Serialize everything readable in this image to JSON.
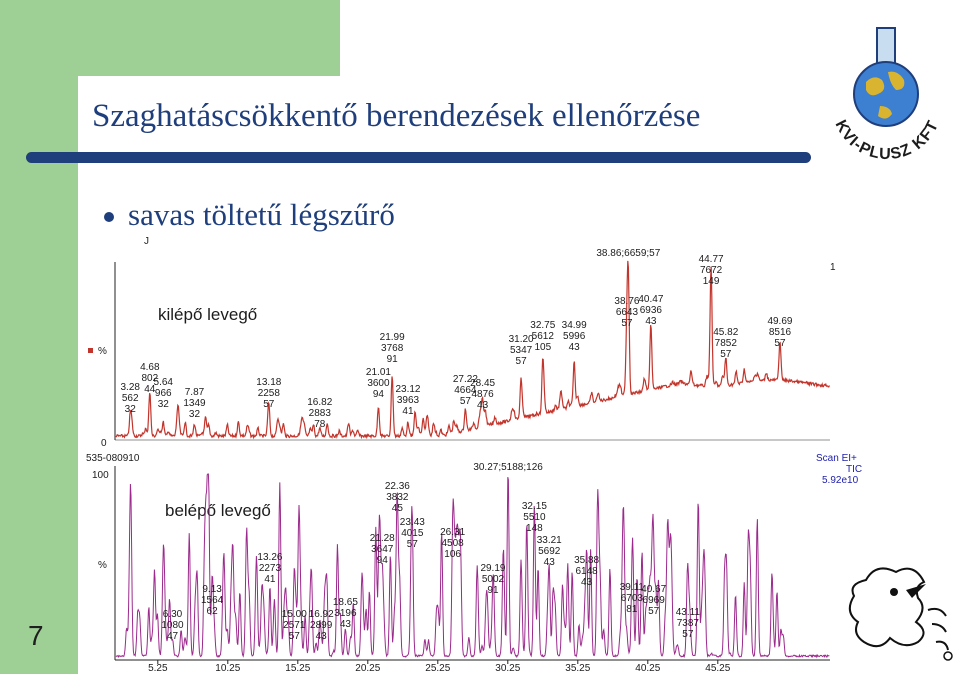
{
  "slide": {
    "title": "Szaghatáscsökkentő berendezések ellenőrzése",
    "bullet": "savas töltetű légszűrő",
    "slide_number": "7",
    "logo_text": "KVI-PLUSZ KFT",
    "colors": {
      "title": "#1f3e7c",
      "green": "#9ecf94",
      "red_trace": "#c2352c",
      "purple_trace": "#9b2a8c"
    }
  },
  "chart_data": [
    {
      "type": "line",
      "label": "kilépő levegő",
      "y_axis": {
        "top_label": "%",
        "bottom_label": "0",
        "marker": "%"
      },
      "right_tag": "1",
      "peaks": [
        {
          "rt": 3.28,
          "lines": [
            "3.28",
            "562",
            "32"
          ]
        },
        {
          "rt": 4.68,
          "lines": [
            "4.68",
            "802",
            "44"
          ]
        },
        {
          "rt": 5.64,
          "lines": [
            "5.64",
            "966",
            "32"
          ]
        },
        {
          "rt": 7.87,
          "lines": [
            "7.87",
            "1349",
            "32"
          ]
        },
        {
          "rt": 13.18,
          "lines": [
            "13.18",
            "2258",
            "57"
          ]
        },
        {
          "rt": 16.82,
          "lines": [
            "16.82",
            "2883",
            "78"
          ]
        },
        {
          "rt": 21.01,
          "lines": [
            "21.01",
            "3600",
            "94"
          ]
        },
        {
          "rt": 21.99,
          "lines": [
            "21.99",
            "3768",
            "91"
          ]
        },
        {
          "rt": 23.12,
          "lines": [
            "23.12",
            "3963",
            "41"
          ]
        },
        {
          "rt": 27.22,
          "lines": [
            "27.22",
            "4664",
            "57"
          ]
        },
        {
          "rt": 28.45,
          "lines": [
            "28.45",
            "4876",
            "43"
          ]
        },
        {
          "rt": 31.2,
          "lines": [
            "31.20",
            "5347",
            "57"
          ]
        },
        {
          "rt": 32.75,
          "lines": [
            "32.75",
            "5612",
            "105"
          ]
        },
        {
          "rt": 34.99,
          "lines": [
            "34.99",
            "5996",
            "43"
          ]
        },
        {
          "rt": 38.76,
          "lines": [
            "38.76",
            "6643",
            "57"
          ]
        },
        {
          "rt": 38.86,
          "lines": [
            "38.86;6659;57"
          ]
        },
        {
          "rt": 40.47,
          "lines": [
            "40.47",
            "6936",
            "43"
          ]
        },
        {
          "rt": 44.77,
          "lines": [
            "44.77",
            "7672",
            "149"
          ]
        },
        {
          "rt": 45.82,
          "lines": [
            "45.82",
            "7852",
            "57"
          ]
        },
        {
          "rt": 49.69,
          "lines": [
            "49.69",
            "8516",
            "57"
          ]
        }
      ]
    },
    {
      "type": "line",
      "label": "belépő levegő",
      "sample_id": "535-080910",
      "y_axis": {
        "top_label": "100",
        "mid_label": "%"
      },
      "scan_info": [
        "Scan EI+",
        "TIC",
        "5.92e10"
      ],
      "x_ticks": [
        "5.25",
        "10.25",
        "15.25",
        "20.25",
        "25.25",
        "30.25",
        "35.25",
        "40.25",
        "45.25"
      ],
      "peaks": [
        {
          "rt": 6.3,
          "lines": [
            "6.30",
            "1080",
            "47"
          ]
        },
        {
          "rt": 9.13,
          "lines": [
            "9.13",
            "1564",
            "62"
          ]
        },
        {
          "rt": 13.26,
          "lines": [
            "13.26",
            "2273",
            "41"
          ]
        },
        {
          "rt": 15.0,
          "lines": [
            "15.00",
            "2571",
            "57"
          ]
        },
        {
          "rt": 16.92,
          "lines": [
            "16.92",
            "2899",
            "43"
          ]
        },
        {
          "rt": 18.65,
          "lines": [
            "18.65",
            "3196",
            "43"
          ]
        },
        {
          "rt": 21.28,
          "lines": [
            "21.28",
            "3647",
            "94"
          ]
        },
        {
          "rt": 22.36,
          "lines": [
            "22.36",
            "3832",
            "45"
          ]
        },
        {
          "rt": 23.43,
          "lines": [
            "23.43",
            "4015",
            "57"
          ]
        },
        {
          "rt": 26.31,
          "lines": [
            "26.31",
            "4508",
            "106"
          ]
        },
        {
          "rt": 29.19,
          "lines": [
            "29.19",
            "5002",
            "91"
          ]
        },
        {
          "rt": 30.27,
          "lines": [
            "30.27;5188;126"
          ]
        },
        {
          "rt": 32.15,
          "lines": [
            "32.15",
            "5510",
            "148"
          ]
        },
        {
          "rt": 33.21,
          "lines": [
            "33.21",
            "5692",
            "43"
          ]
        },
        {
          "rt": 35.88,
          "lines": [
            "35.88",
            "6148",
            "43"
          ]
        },
        {
          "rt": 39.11,
          "lines": [
            "39.11",
            "6703",
            "81"
          ]
        },
        {
          "rt": 40.67,
          "lines": [
            "40.67",
            "6969",
            "57"
          ]
        },
        {
          "rt": 43.11,
          "lines": [
            "43.11",
            "7387",
            "57"
          ]
        }
      ]
    }
  ]
}
